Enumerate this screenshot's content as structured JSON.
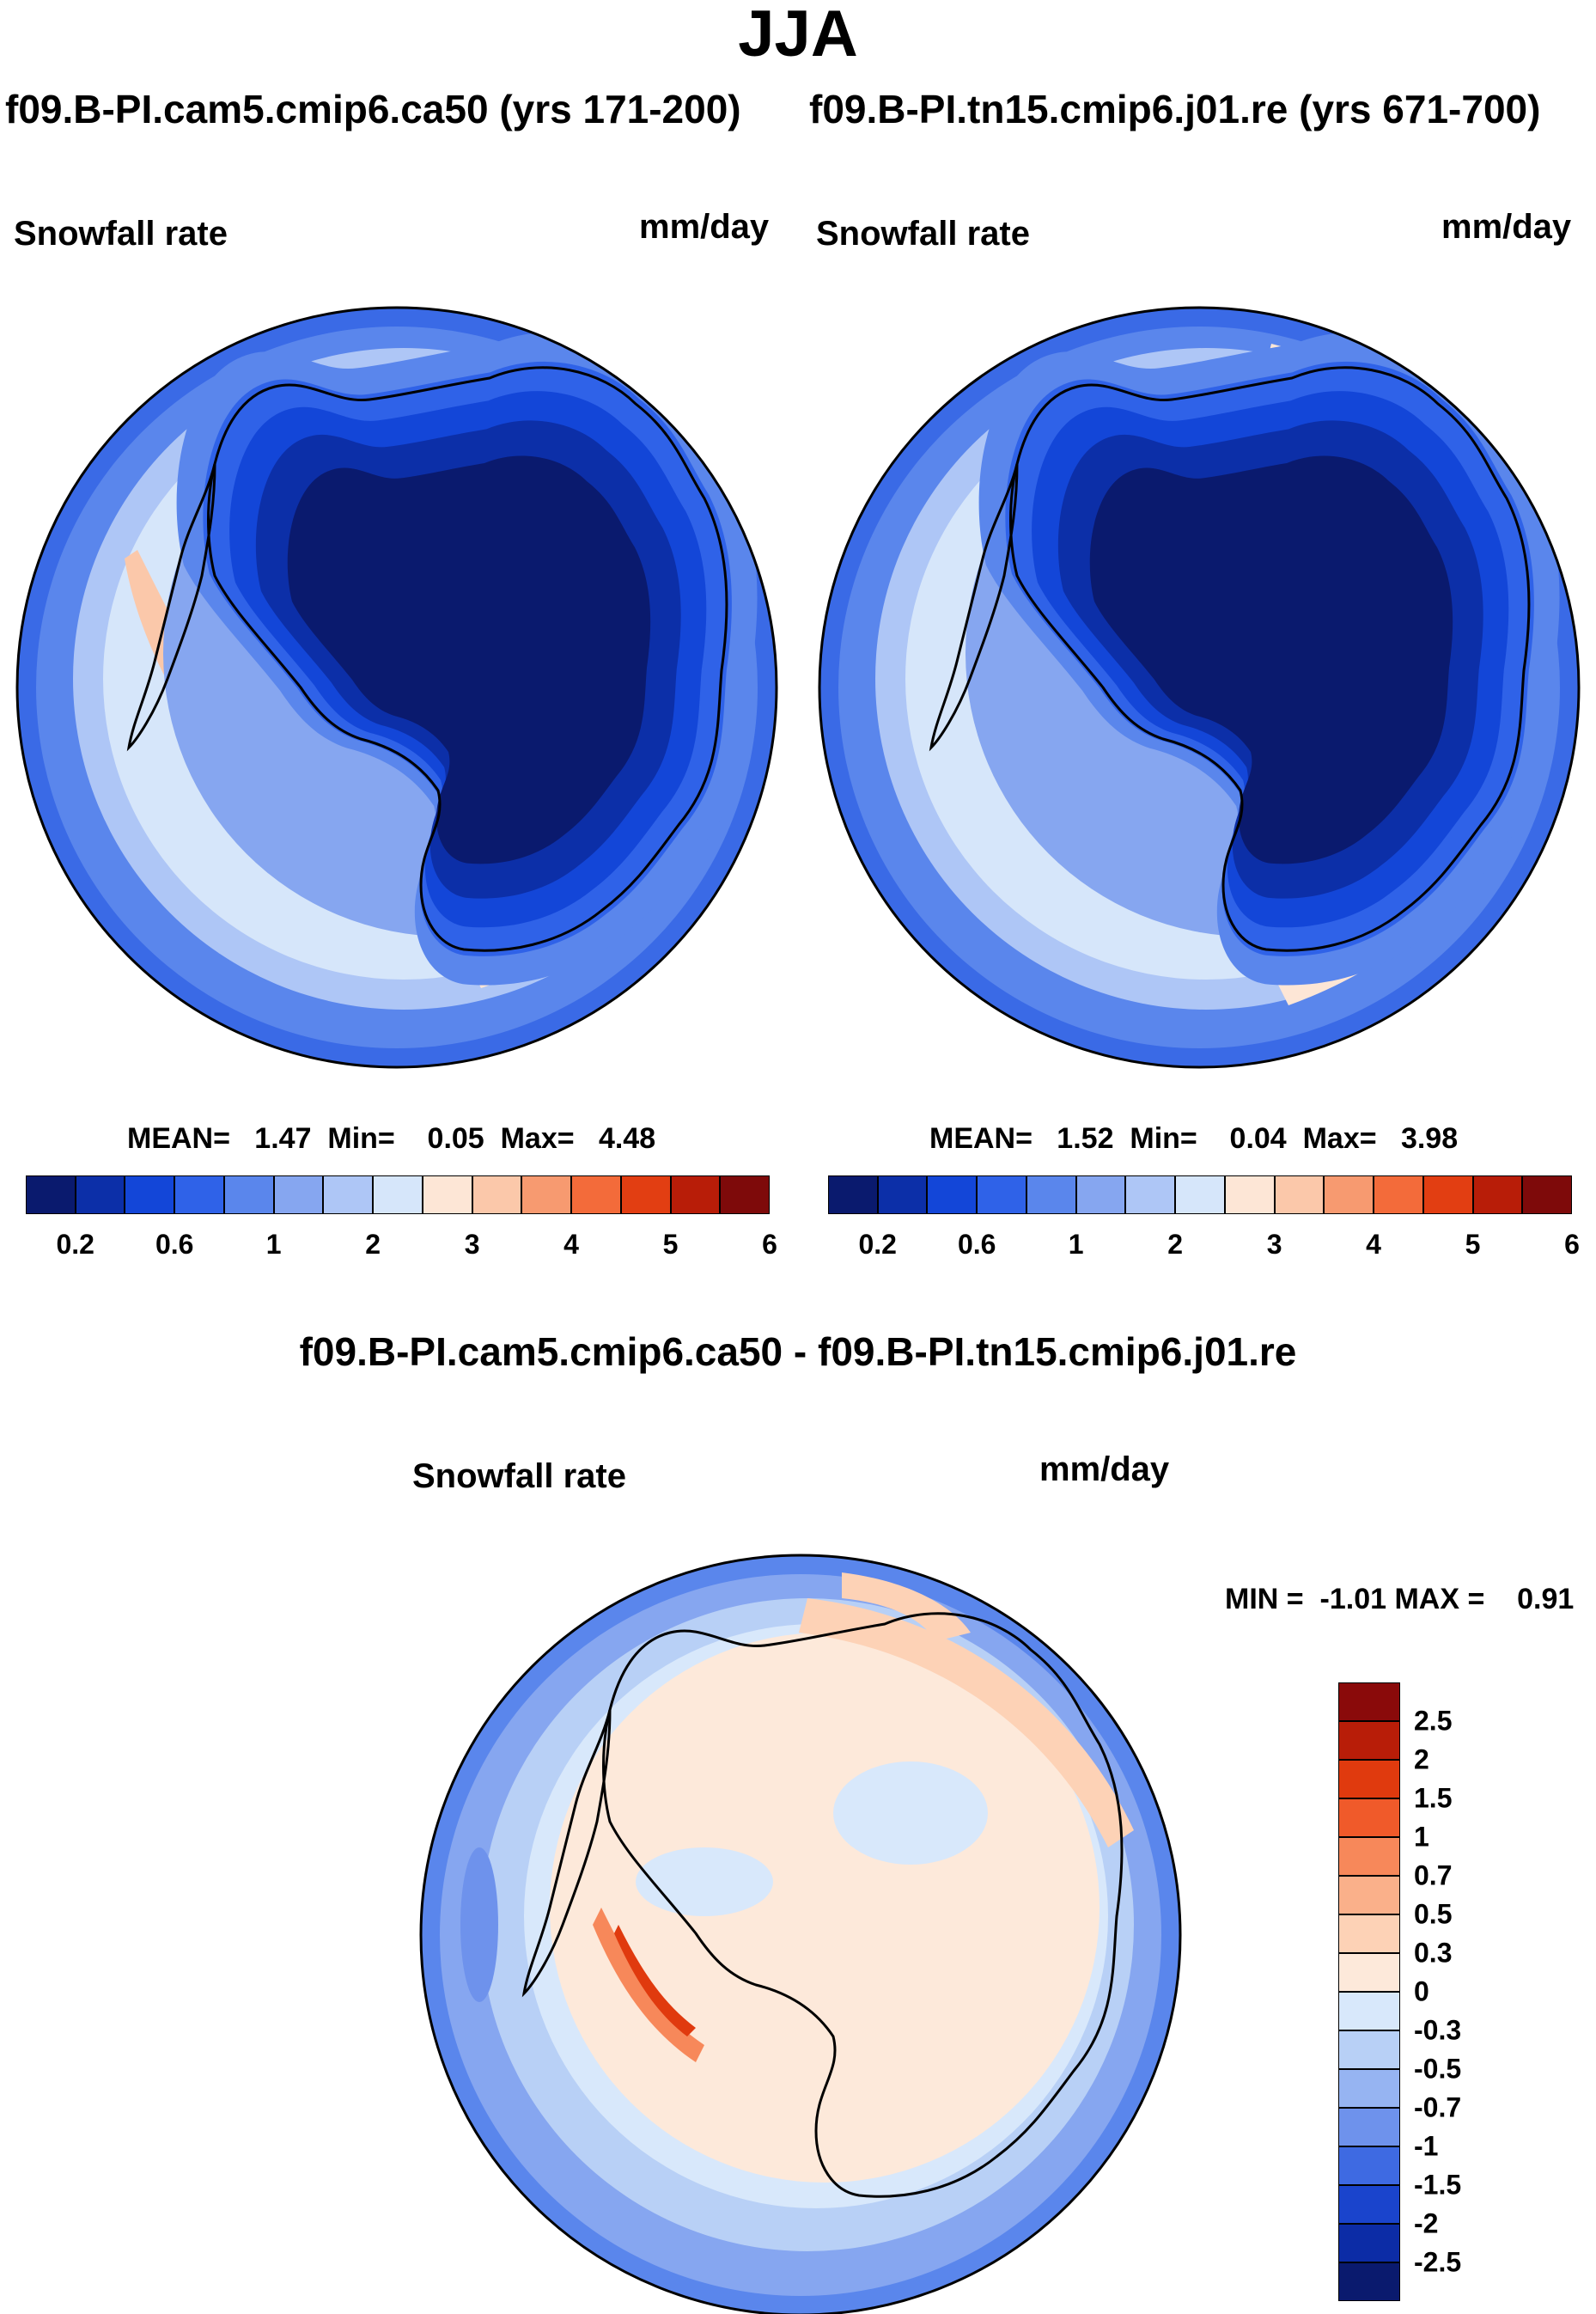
{
  "title": "JJA",
  "case_left": "f09.B-PI.cam5.cmip6.ca50 (yrs 171-200)",
  "case_right": "f09.B-PI.tn15.cmip6.j01.re (yrs 671-700)",
  "diff_title": "f09.B-PI.cam5.cmip6.ca50 - f09.B-PI.tn15.cmip6.j01.re",
  "panels": [
    {
      "variable": "Snowfall rate",
      "units": "mm/day",
      "stats": "MEAN=   1.47  Min=    0.05  Max=   4.48"
    },
    {
      "variable": "Snowfall rate",
      "units": "mm/day",
      "stats": "MEAN=   1.52  Min=    0.04  Max=   3.98"
    },
    {
      "variable": "Snowfall rate",
      "units": "mm/day",
      "stats": "MIN =  -1.01 MAX =    0.91"
    }
  ],
  "colorbar_abs": {
    "tick_labels": [
      "0.2",
      "0.6",
      "1",
      "2",
      "3",
      "4",
      "5",
      "6"
    ],
    "colors": [
      "#0a1a6e",
      "#0c2fa8",
      "#1346d8",
      "#2f62e8",
      "#5a86ec",
      "#86a6f0",
      "#aec6f6",
      "#d6e6fa",
      "#fde6d6",
      "#fbc8aa",
      "#f79a70",
      "#f36b3a",
      "#e23e12",
      "#b81d08",
      "#7e0a0a"
    ]
  },
  "colorbar_diff": {
    "tick_labels": [
      "2.5",
      "2",
      "1.5",
      "1",
      "0.7",
      "0.5",
      "0.3",
      "0",
      "-0.3",
      "-0.5",
      "-0.7",
      "-1",
      "-1.5",
      "-2",
      "-2.5"
    ],
    "colors": [
      "#8a0a0a",
      "#b81d08",
      "#e03a0e",
      "#f05a2a",
      "#f7885a",
      "#fab08a",
      "#fdd2b6",
      "#fde9da",
      "#d8e8fb",
      "#b8d0f6",
      "#96b4f2",
      "#6e92ec",
      "#3e6ae2",
      "#1a44cc",
      "#0c2ca6",
      "#0a1a6e"
    ]
  }
}
